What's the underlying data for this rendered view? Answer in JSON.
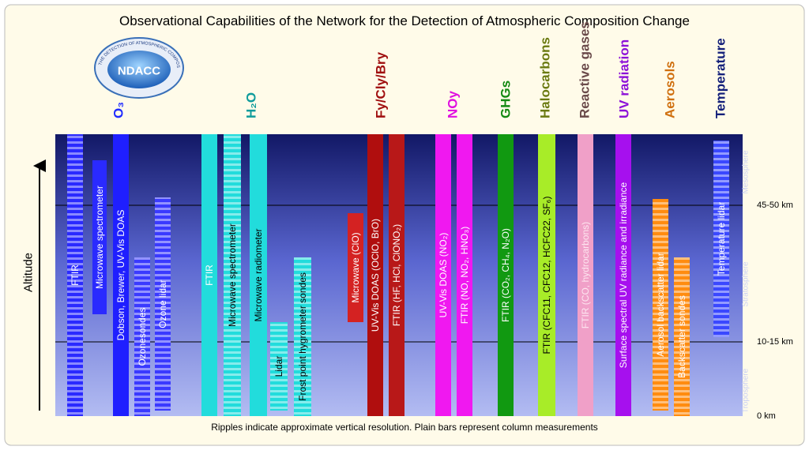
{
  "title": "Observational Capabilities of the Network for the Detection of Atmospheric Composition Change",
  "caption": "Ripples indicate approximate vertical resolution. Plain bars represent column measurements",
  "axis_label": "Altitude",
  "logo": {
    "text": "NDACC",
    "ring": "NETWORK FOR THE DETECTION OF ATMOSPHERIC COMPOSITION CHANGE"
  },
  "levels": [
    {
      "label": "45-50 km"
    },
    {
      "label": "10-15 km"
    },
    {
      "label": "0 km"
    }
  ],
  "layers": [
    "Mesosphere",
    "Stratosphere",
    "Troposphere"
  ],
  "groups": [
    {
      "heading": "O₃",
      "color": "#1f2bff",
      "instruments": [
        {
          "label": "FTIR",
          "color": "#2a2aff",
          "ripple": true
        },
        {
          "label": "Microwave spectrometer",
          "color": "#2a2aff",
          "ripple": false
        },
        {
          "label": "Dobson, Brewer, UV-Vis DOAS",
          "color": "#1f1fff",
          "ripple": false
        },
        {
          "label": "Ozonesondes",
          "color": "#3a3aff",
          "ripple": true
        },
        {
          "label": "Ozone lidar",
          "color": "#3a3aff",
          "ripple": true
        }
      ]
    },
    {
      "heading": "H₂O",
      "color": "#0f9c9c",
      "instruments": [
        {
          "label": "FTIR",
          "color": "#22dcdc",
          "ripple": false
        },
        {
          "label": "Microwave spectrometer",
          "color": "#22dcdc",
          "ripple": true,
          "text_color": "#000000"
        },
        {
          "label": "Microwave radiometer",
          "color": "#22dcdc",
          "ripple": false,
          "text_color": "#000000"
        },
        {
          "label": "Lidar",
          "color": "#22dcdc",
          "ripple": true,
          "text_color": "#000000"
        },
        {
          "label": "Frost point hygrometer sondes",
          "color": "#22dcdc",
          "ripple": true,
          "text_color": "#000000"
        }
      ]
    },
    {
      "heading": "Fy/Cly/Bry",
      "color": "#a00f0f",
      "instruments": [
        {
          "label": "Microwave (ClO)",
          "color": "#d42222",
          "ripple": false
        },
        {
          "label": "UV-Vis DOAS (OClO, BrO)",
          "color": "#b00e0e",
          "ripple": false
        },
        {
          "label": "FTIR (HF, HCl, ClONO₂)",
          "color": "#b81818",
          "ripple": false
        }
      ]
    },
    {
      "heading": "NOy",
      "color": "#e010e0",
      "instruments": [
        {
          "label": "UV-Vis DOAS (NO₂)",
          "color": "#f018f0",
          "ripple": false
        },
        {
          "label": "FTIR (NO, NO₂, HNO₃)",
          "color": "#f018f0",
          "ripple": false
        }
      ]
    },
    {
      "heading": "GHGs",
      "color": "#138a13",
      "instruments": [
        {
          "label": "FTIR (CO₂, CH₄, N₂O)",
          "color": "#119911",
          "ripple": false
        }
      ]
    },
    {
      "heading": "Halocarbons",
      "color": "#6a7a10",
      "instruments": [
        {
          "label": "FTIR (CFC11, CFC12, HCFC22, SF₆)",
          "color": "#a8ec28",
          "ripple": false,
          "text_color": "#000000"
        }
      ]
    },
    {
      "heading": "Reactive gases",
      "color": "#6a4a4a",
      "instruments": [
        {
          "label": "FTIR (CO, hydrocarbons)",
          "color": "#f0a0c8",
          "ripple": false,
          "text_color": "#fde6f0"
        }
      ]
    },
    {
      "heading": "UV radiation",
      "color": "#8c10d8",
      "instruments": [
        {
          "label": "Surface spectral UV radiance and irradiance",
          "color": "#a610ee",
          "ripple": false
        }
      ]
    },
    {
      "heading": "Aerosols",
      "color": "#d07010",
      "instruments": [
        {
          "label": "Aerosol backscatter lidar",
          "color": "#ff8c10",
          "ripple": true
        },
        {
          "label": "Backscatter sondes",
          "color": "#ff8c10",
          "ripple": true
        }
      ]
    },
    {
      "heading": "Temperature",
      "color": "#14207a",
      "instruments": [
        {
          "label": "Temperature lidar",
          "color": "#3a48ff",
          "ripple": true
        }
      ]
    }
  ]
}
